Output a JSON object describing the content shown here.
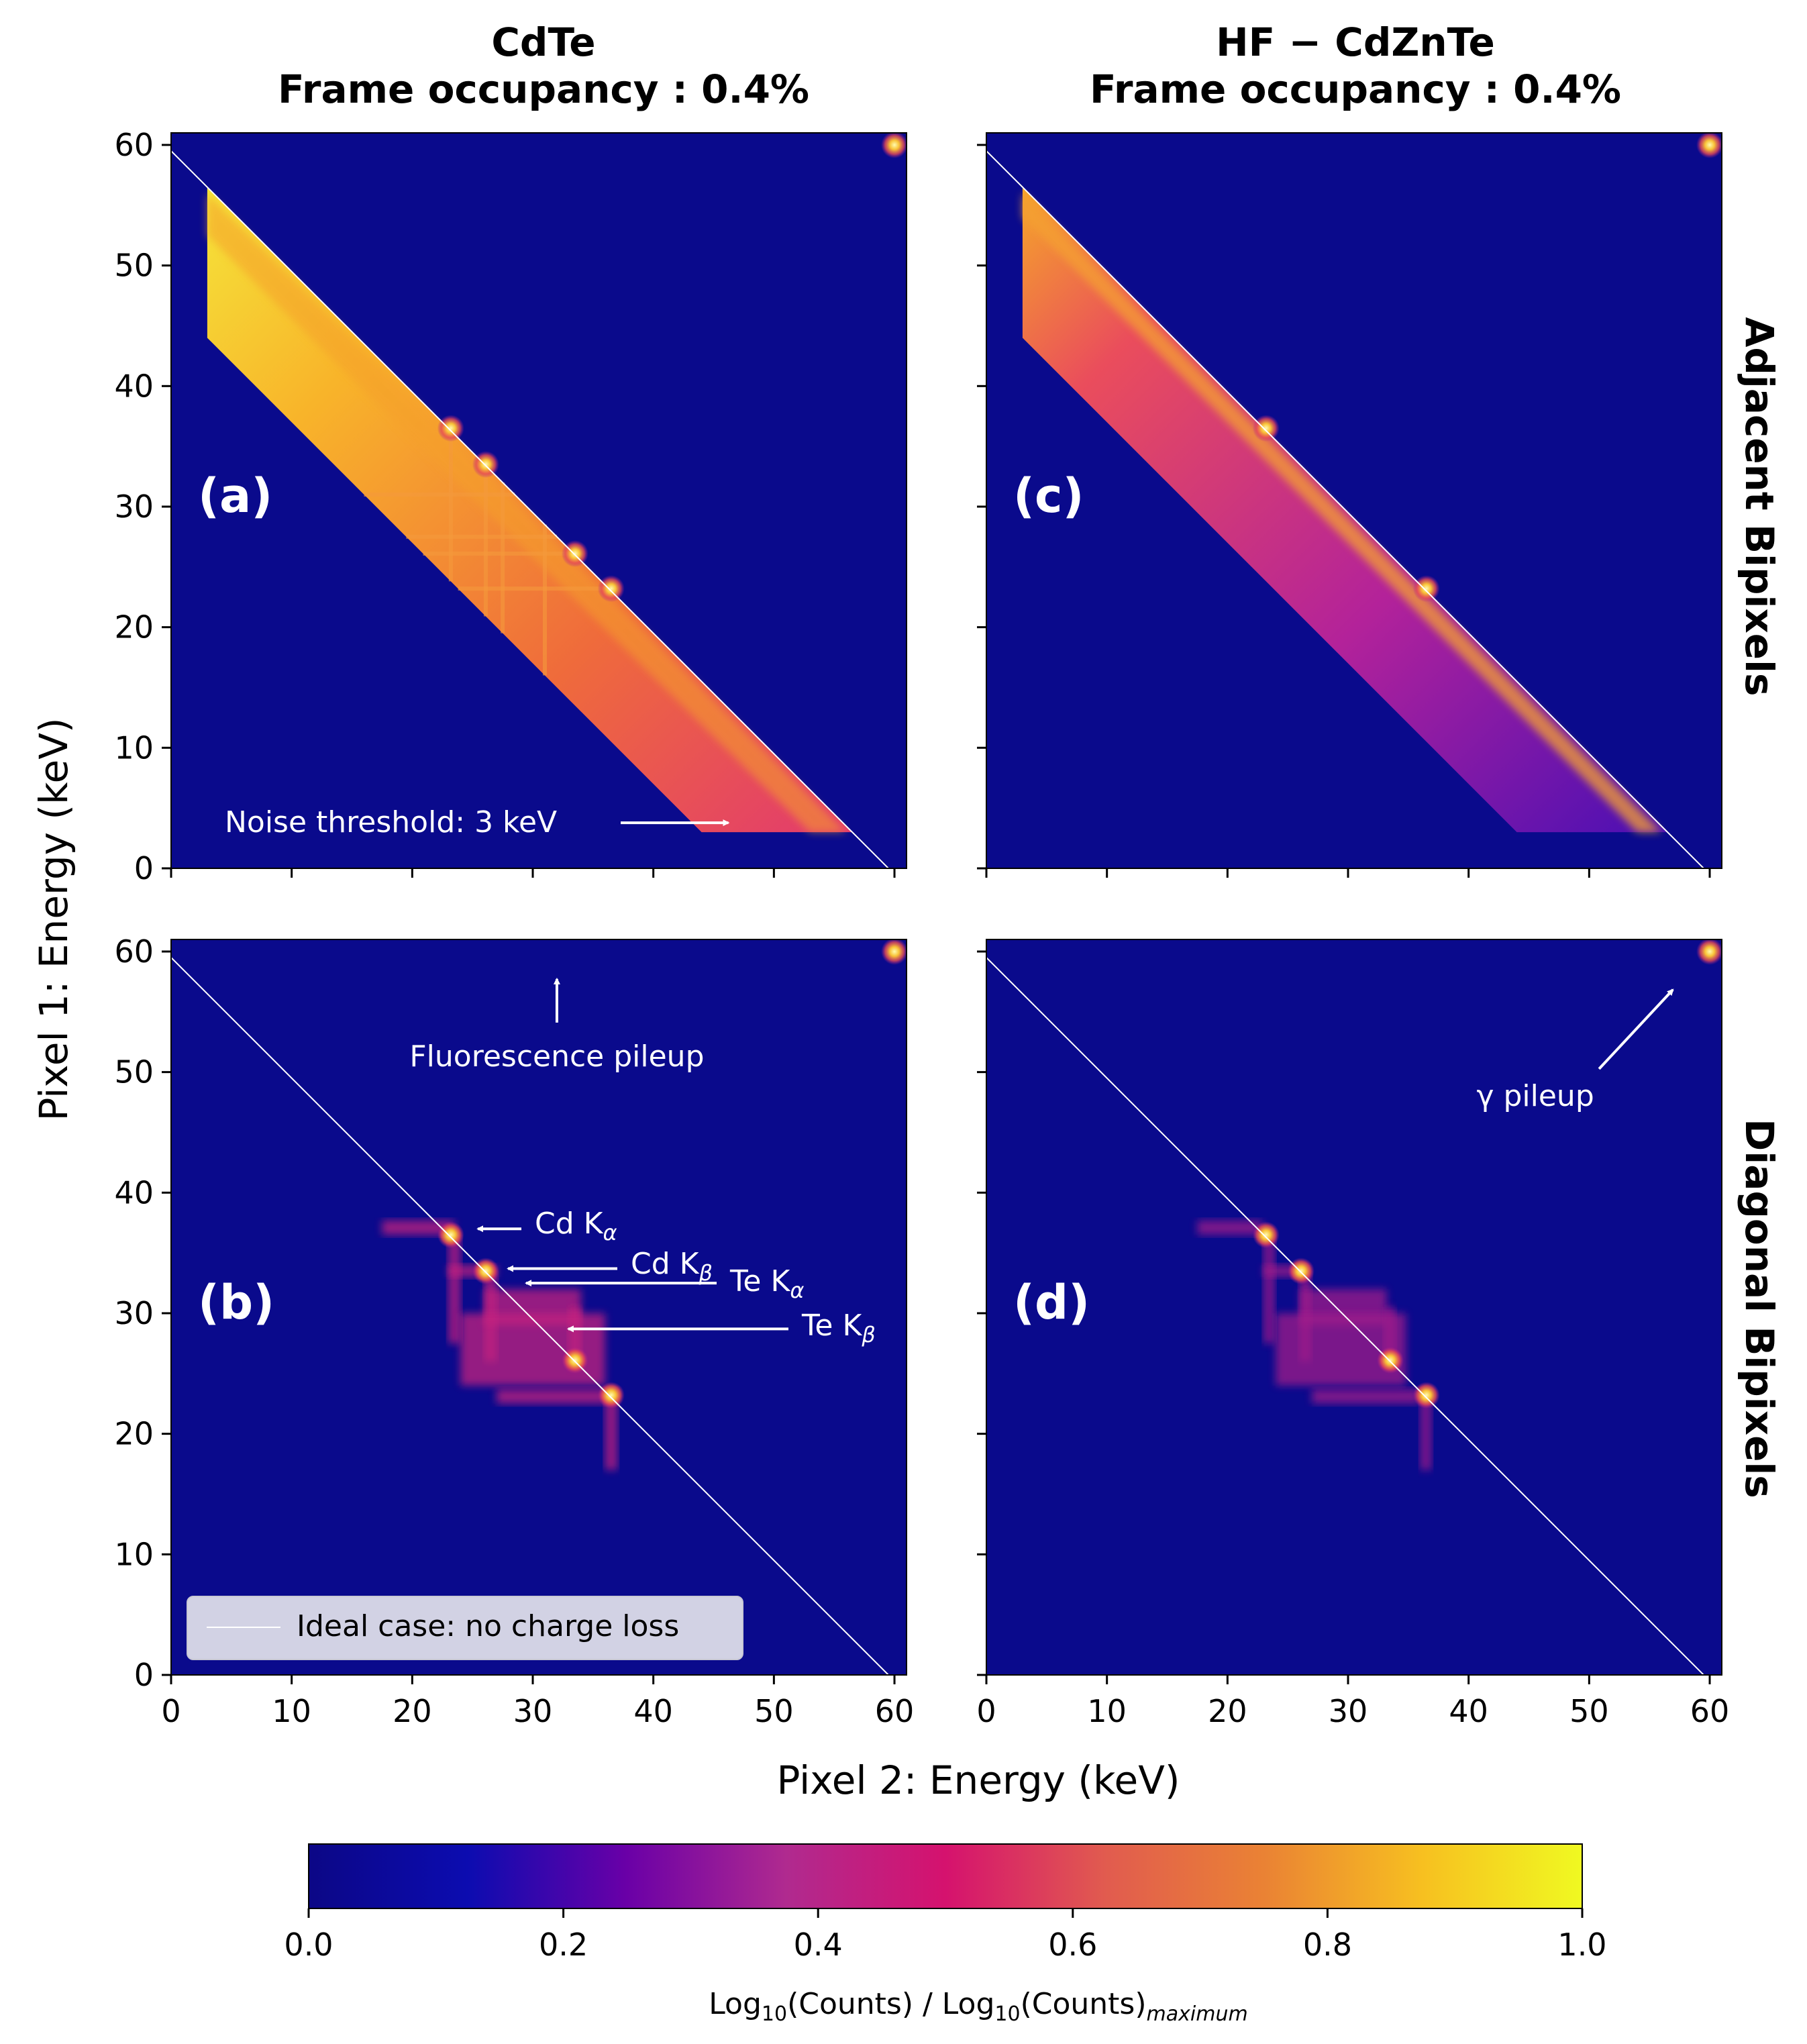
{
  "figure": {
    "column_titles": [
      {
        "material": "CdTe",
        "occupancy": "Frame occupancy :  0.4%"
      },
      {
        "material": "HF − CdZnTe",
        "occupancy": "Frame occupancy :  0.4%"
      }
    ],
    "row_titles": [
      "Adjacent Bipixels",
      "Diagonal Bipixels"
    ],
    "x_label": "Pixel 2: Energy (keV)",
    "y_label": "Pixel 1: Energy (keV)",
    "legend": "Ideal case: no charge loss",
    "colorbar": {
      "label": "Log10(Counts) / Log10(Counts)maximum",
      "ticks": [
        "0.0",
        "0.2",
        "0.4",
        "0.6",
        "0.8",
        "1.0"
      ],
      "colors": [
        "#0c0786",
        "#0c0cb0",
        "#6a00a7",
        "#b02a8f",
        "#d5126e",
        "#e15b4f",
        "#ea8234",
        "#f7c020",
        "#f0f921"
      ]
    },
    "colors": {
      "background": "#0a0a8c",
      "ideal_line": "#ffffff",
      "annotation": "#ffffff"
    }
  },
  "chart_data": [
    {
      "panel": "(a)",
      "type": "heatmap",
      "material": "CdTe",
      "pair": "Adjacent Bipixels",
      "xlabel": "Pixel 2: Energy (keV)",
      "ylabel": "Pixel 1: Energy (keV)",
      "xlim": [
        0,
        61
      ],
      "ylim": [
        0,
        61
      ],
      "xticks": [
        0,
        10,
        20,
        30,
        40,
        50,
        60
      ],
      "yticks": [
        0,
        10,
        20,
        30,
        40,
        50,
        60
      ],
      "ideal_line": {
        "from": [
          0,
          59.5
        ],
        "to": [
          59.5,
          0
        ]
      },
      "band": {
        "x_start": 3,
        "x_end": 59,
        "sum_max_keV": 59.5,
        "width_keV": 12.5
      },
      "fluorescence_lines_keV": [
        23.2,
        26.1,
        27.5,
        31.0
      ],
      "hotspots": [
        [
          23.2,
          36.5
        ],
        [
          36.5,
          23.2
        ],
        [
          26.1,
          33.5
        ],
        [
          33.5,
          26.1
        ],
        [
          60,
          60
        ]
      ],
      "annotations": [
        {
          "text": "Noise threshold: 3 keV",
          "arrow_to": [
            46.5,
            3
          ]
        }
      ]
    },
    {
      "panel": "(b)",
      "type": "heatmap",
      "material": "CdTe",
      "pair": "Diagonal Bipixels",
      "xlabel": "Pixel 2: Energy (keV)",
      "ylabel": "Pixel 1: Energy (keV)",
      "xlim": [
        0,
        61
      ],
      "ylim": [
        0,
        61
      ],
      "xticks": [
        0,
        10,
        20,
        30,
        40,
        50,
        60
      ],
      "yticks": [
        0,
        10,
        20,
        30,
        40,
        50,
        60
      ],
      "ideal_line": {
        "from": [
          0,
          59.5
        ],
        "to": [
          59.5,
          0
        ]
      },
      "hotspots": [
        [
          23.2,
          36.5
        ],
        [
          36.5,
          23.2
        ],
        [
          26.1,
          33.5
        ],
        [
          33.5,
          26.1
        ],
        [
          60,
          60
        ]
      ],
      "annotations": [
        {
          "text": "Fluorescence pileup",
          "arrow_to": [
            32,
            58
          ]
        },
        {
          "text": "Cd Kα",
          "arrow_to": [
            25,
            37
          ]
        },
        {
          "text": "Cd Kβ",
          "arrow_to": [
            27.5,
            33.7
          ]
        },
        {
          "text": "Te Kα",
          "arrow_to": [
            29,
            32.5
          ]
        },
        {
          "text": "Te Kβ",
          "arrow_to": [
            32.5,
            28.7
          ]
        }
      ]
    },
    {
      "panel": "(c)",
      "type": "heatmap",
      "material": "HF − CdZnTe",
      "pair": "Adjacent Bipixels",
      "xlabel": "Pixel 2: Energy (keV)",
      "ylabel": "Pixel 1: Energy (keV)",
      "xlim": [
        0,
        61
      ],
      "ylim": [
        0,
        61
      ],
      "xticks": [
        0,
        10,
        20,
        30,
        40,
        50,
        60
      ],
      "yticks": [
        0,
        10,
        20,
        30,
        40,
        50,
        60
      ],
      "ideal_line": {
        "from": [
          0,
          59.5
        ],
        "to": [
          59.5,
          0
        ]
      },
      "band": {
        "x_start": 3,
        "x_end": 59,
        "sum_max_keV": 59.5,
        "width_keV": 12.5
      },
      "hotspots": [
        [
          23.2,
          36.5
        ],
        [
          36.5,
          23.2
        ],
        [
          60,
          60
        ]
      ]
    },
    {
      "panel": "(d)",
      "type": "heatmap",
      "material": "HF − CdZnTe",
      "pair": "Diagonal Bipixels",
      "xlabel": "Pixel 2: Energy (keV)",
      "ylabel": "Pixel 1: Energy (keV)",
      "xlim": [
        0,
        61
      ],
      "ylim": [
        0,
        61
      ],
      "xticks": [
        0,
        10,
        20,
        30,
        40,
        50,
        60
      ],
      "yticks": [
        0,
        10,
        20,
        30,
        40,
        50,
        60
      ],
      "ideal_line": {
        "from": [
          0,
          59.5
        ],
        "to": [
          59.5,
          0
        ]
      },
      "hotspots": [
        [
          23.2,
          36.5
        ],
        [
          36.5,
          23.2
        ],
        [
          26.1,
          33.5
        ],
        [
          33.5,
          26.1
        ],
        [
          60,
          60
        ]
      ],
      "annotations": [
        {
          "text": "γ pileup",
          "arrow_to": [
            57.5,
            57.5
          ]
        }
      ]
    }
  ]
}
